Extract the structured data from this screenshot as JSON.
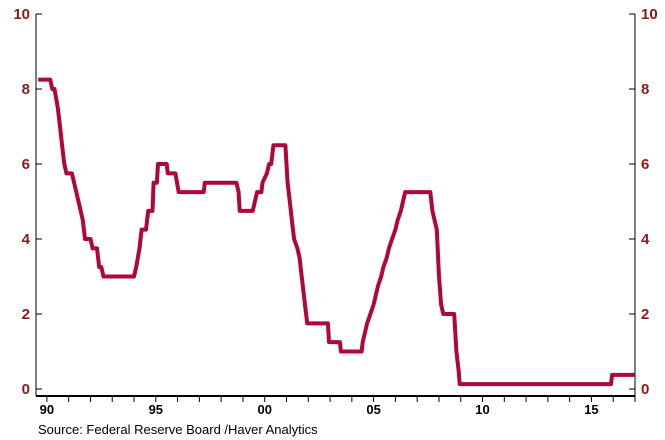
{
  "chart_data": {
    "type": "line",
    "title": "",
    "xlabel": "",
    "ylabel": "",
    "x_range": [
      1989.5,
      2017.0
    ],
    "ylim": [
      0,
      10
    ],
    "y_ticks": [
      0,
      2,
      4,
      6,
      8,
      10
    ],
    "y_tick_labels": [
      "0",
      "2",
      "4",
      "6",
      "8",
      "10"
    ],
    "x_tick_labels": [
      {
        "x": 1990,
        "label": "90"
      },
      {
        "x": 1995,
        "label": "95"
      },
      {
        "x": 2000,
        "label": "00"
      },
      {
        "x": 2005,
        "label": "05"
      },
      {
        "x": 2010,
        "label": "10"
      },
      {
        "x": 2015,
        "label": "15"
      }
    ],
    "grid": false,
    "colors": {
      "series": "#b0063a",
      "axis": "#000000",
      "ytick": "#8b1a1a"
    },
    "series": [
      {
        "name": "",
        "points": [
          [
            1989.6,
            8.25
          ],
          [
            1990.15,
            8.25
          ],
          [
            1990.25,
            8.0
          ],
          [
            1990.35,
            8.0
          ],
          [
            1990.5,
            7.5
          ],
          [
            1990.6,
            7.0
          ],
          [
            1990.7,
            6.5
          ],
          [
            1990.8,
            6.0
          ],
          [
            1990.9,
            5.75
          ],
          [
            1991.15,
            5.75
          ],
          [
            1991.25,
            5.5
          ],
          [
            1991.35,
            5.25
          ],
          [
            1991.45,
            5.0
          ],
          [
            1991.55,
            4.75
          ],
          [
            1991.65,
            4.5
          ],
          [
            1991.75,
            4.0
          ],
          [
            1992.0,
            4.0
          ],
          [
            1992.1,
            3.75
          ],
          [
            1992.3,
            3.75
          ],
          [
            1992.4,
            3.25
          ],
          [
            1992.5,
            3.25
          ],
          [
            1992.6,
            3.0
          ],
          [
            1994.0,
            3.0
          ],
          [
            1994.1,
            3.25
          ],
          [
            1994.25,
            3.75
          ],
          [
            1994.35,
            4.25
          ],
          [
            1994.55,
            4.25
          ],
          [
            1994.65,
            4.75
          ],
          [
            1994.85,
            4.75
          ],
          [
            1994.9,
            5.5
          ],
          [
            1995.05,
            5.5
          ],
          [
            1995.1,
            6.0
          ],
          [
            1995.5,
            6.0
          ],
          [
            1995.55,
            5.75
          ],
          [
            1995.9,
            5.75
          ],
          [
            1996.05,
            5.25
          ],
          [
            1997.2,
            5.25
          ],
          [
            1997.25,
            5.5
          ],
          [
            1998.7,
            5.5
          ],
          [
            1998.8,
            5.25
          ],
          [
            1998.85,
            4.75
          ],
          [
            1999.45,
            4.75
          ],
          [
            1999.55,
            5.0
          ],
          [
            1999.65,
            5.25
          ],
          [
            1999.85,
            5.25
          ],
          [
            1999.9,
            5.5
          ],
          [
            2000.1,
            5.75
          ],
          [
            2000.2,
            6.0
          ],
          [
            2000.3,
            6.0
          ],
          [
            2000.4,
            6.5
          ],
          [
            2000.95,
            6.5
          ],
          [
            2001.0,
            6.0
          ],
          [
            2001.05,
            5.5
          ],
          [
            2001.15,
            5.0
          ],
          [
            2001.25,
            4.5
          ],
          [
            2001.35,
            4.0
          ],
          [
            2001.5,
            3.75
          ],
          [
            2001.6,
            3.5
          ],
          [
            2001.7,
            3.0
          ],
          [
            2001.8,
            2.5
          ],
          [
            2001.9,
            2.0
          ],
          [
            2001.95,
            1.75
          ],
          [
            2002.9,
            1.75
          ],
          [
            2002.95,
            1.25
          ],
          [
            2003.45,
            1.25
          ],
          [
            2003.5,
            1.0
          ],
          [
            2004.45,
            1.0
          ],
          [
            2004.5,
            1.25
          ],
          [
            2004.6,
            1.5
          ],
          [
            2004.7,
            1.75
          ],
          [
            2004.85,
            2.0
          ],
          [
            2005.0,
            2.25
          ],
          [
            2005.1,
            2.5
          ],
          [
            2005.2,
            2.75
          ],
          [
            2005.35,
            3.0
          ],
          [
            2005.45,
            3.25
          ],
          [
            2005.6,
            3.5
          ],
          [
            2005.7,
            3.75
          ],
          [
            2005.85,
            4.0
          ],
          [
            2006.0,
            4.25
          ],
          [
            2006.1,
            4.5
          ],
          [
            2006.25,
            4.75
          ],
          [
            2006.35,
            5.0
          ],
          [
            2006.45,
            5.25
          ],
          [
            2007.6,
            5.25
          ],
          [
            2007.7,
            4.75
          ],
          [
            2007.8,
            4.5
          ],
          [
            2007.9,
            4.25
          ],
          [
            2008.0,
            3.0
          ],
          [
            2008.1,
            2.25
          ],
          [
            2008.2,
            2.0
          ],
          [
            2008.7,
            2.0
          ],
          [
            2008.8,
            1.0
          ],
          [
            2008.9,
            0.5
          ],
          [
            2008.95,
            0.13
          ],
          [
            2015.9,
            0.13
          ],
          [
            2015.95,
            0.375
          ],
          [
            2017.0,
            0.375
          ]
        ]
      }
    ],
    "source": "Source:  Federal Reserve Board /Haver Analytics"
  }
}
